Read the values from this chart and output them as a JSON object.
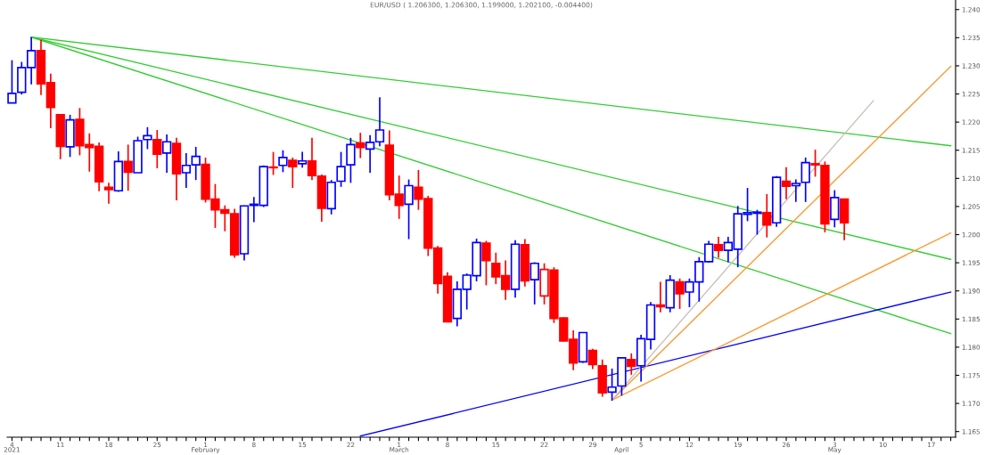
{
  "chart_data": {
    "type": "candlestick",
    "title": "EUR/USD ( 1.206300, 1.206300, 1.199000, 1.202100, -0.004400)",
    "categories": [
      "4\n2021",
      null,
      null,
      null,
      null,
      "11",
      null,
      null,
      null,
      null,
      "18",
      null,
      null,
      null,
      null,
      "25",
      null,
      null,
      null,
      null,
      "1\nFebruary",
      null,
      null,
      null,
      null,
      "8",
      null,
      null,
      null,
      null,
      "15",
      null,
      null,
      null,
      null,
      "22",
      null,
      null,
      null,
      null,
      "1\nMarch",
      null,
      null,
      null,
      null,
      "8",
      null,
      null,
      null,
      null,
      "15",
      null,
      null,
      null,
      null,
      "22",
      null,
      null,
      null,
      null,
      "29",
      null,
      null,
      "\nApril",
      null,
      "5",
      null,
      null,
      null,
      null,
      "12",
      null,
      null,
      null,
      null,
      "19",
      null,
      null,
      null,
      null,
      "26",
      null,
      null,
      null,
      null,
      "3\nMay",
      null,
      null,
      null,
      null,
      "10",
      null,
      null,
      null,
      null,
      "17",
      null,
      null
    ],
    "ohlc": [
      [
        1.2234,
        1.231,
        1.2234,
        1.2251
      ],
      [
        1.2253,
        1.2307,
        1.2249,
        1.2297
      ],
      [
        1.2297,
        1.2351,
        1.2267,
        1.2327
      ],
      [
        1.2327,
        1.2346,
        1.2248,
        1.2268
      ],
      [
        1.227,
        1.2286,
        1.2189,
        1.2226
      ],
      [
        1.2213,
        1.2213,
        1.2134,
        1.2157
      ],
      [
        1.2156,
        1.2213,
        1.2138,
        1.2204
      ],
      [
        1.2205,
        1.2225,
        1.2141,
        1.2158
      ],
      [
        1.216,
        1.218,
        1.2112,
        1.2155
      ],
      [
        1.2157,
        1.2164,
        1.2077,
        1.2094
      ],
      [
        1.2084,
        1.2092,
        1.2055,
        1.208
      ],
      [
        1.2078,
        1.2148,
        1.2076,
        1.213
      ],
      [
        1.213,
        1.216,
        1.2078,
        1.2111
      ],
      [
        1.211,
        1.2174,
        1.211,
        1.2167
      ],
      [
        1.2169,
        1.2191,
        1.2152,
        1.2176
      ],
      [
        1.2169,
        1.2186,
        1.2118,
        1.2143
      ],
      [
        1.2145,
        1.2178,
        1.211,
        1.2165
      ],
      [
        1.2162,
        1.2172,
        1.2061,
        1.2108
      ],
      [
        1.211,
        1.2145,
        1.2083,
        1.2123
      ],
      [
        1.2124,
        1.2156,
        1.2097,
        1.2139
      ],
      [
        1.2125,
        1.2137,
        1.2057,
        1.2063
      ],
      [
        1.2063,
        1.209,
        1.2012,
        1.2044
      ],
      [
        1.2044,
        1.2052,
        1.2006,
        1.2038
      ],
      [
        1.2037,
        1.2046,
        1.1959,
        1.1964
      ],
      [
        1.1966,
        1.2052,
        1.1954,
        1.2051
      ],
      [
        1.2052,
        1.2067,
        1.2022,
        1.2054
      ],
      [
        1.2052,
        1.2123,
        1.2049,
        1.2121
      ],
      [
        1.212,
        1.2147,
        1.2106,
        1.2119
      ],
      [
        1.2123,
        1.215,
        1.2111,
        1.2137
      ],
      [
        1.2132,
        1.2137,
        1.2083,
        1.2121
      ],
      [
        1.2126,
        1.2147,
        1.2119,
        1.2131
      ],
      [
        1.2131,
        1.2172,
        1.2097,
        1.2105
      ],
      [
        1.2104,
        1.2107,
        1.2023,
        1.2047
      ],
      [
        1.2046,
        1.2097,
        1.2036,
        1.2093
      ],
      [
        1.2095,
        1.2147,
        1.2085,
        1.2121
      ],
      [
        1.2124,
        1.2172,
        1.2092,
        1.216
      ],
      [
        1.2163,
        1.2181,
        1.2136,
        1.2155
      ],
      [
        1.2152,
        1.2177,
        1.211,
        1.2164
      ],
      [
        1.2165,
        1.2244,
        1.2157,
        1.2186
      ],
      [
        1.2159,
        1.2185,
        1.2061,
        1.2071
      ],
      [
        1.2072,
        1.2105,
        1.2028,
        1.2052
      ],
      [
        1.2054,
        1.2098,
        1.1992,
        1.2087
      ],
      [
        1.2084,
        1.2115,
        1.2044,
        1.2063
      ],
      [
        1.2064,
        1.2069,
        1.1962,
        1.1976
      ],
      [
        1.1976,
        1.198,
        1.1895,
        1.1913
      ],
      [
        1.1926,
        1.1933,
        1.1845,
        1.1845
      ],
      [
        1.1851,
        1.1917,
        1.1837,
        1.1903
      ],
      [
        1.1903,
        1.1931,
        1.1867,
        1.1928
      ],
      [
        1.1927,
        1.1993,
        1.1917,
        1.1986
      ],
      [
        1.1985,
        1.1989,
        1.191,
        1.1954
      ],
      [
        1.1949,
        1.1968,
        1.1912,
        1.1925
      ],
      [
        1.1927,
        1.1954,
        1.1884,
        1.1903
      ],
      [
        1.1903,
        1.199,
        1.1888,
        1.1983
      ],
      [
        1.1982,
        1.1992,
        1.1908,
        1.1918
      ],
      [
        1.192,
        1.1951,
        1.1876,
        1.1949
      ],
      [
        1.1891,
        1.1949,
        1.1876,
        1.1938
      ],
      [
        1.1937,
        1.1942,
        1.1843,
        1.1851
      ],
      [
        1.1852,
        1.1853,
        1.181,
        1.1811
      ],
      [
        1.1814,
        1.183,
        1.1759,
        1.1772
      ],
      [
        1.1774,
        1.1826,
        1.1772,
        1.1826
      ],
      [
        1.1794,
        1.1797,
        1.1761,
        1.1769
      ],
      [
        1.1767,
        1.1778,
        1.1712,
        1.1719
      ],
      [
        1.172,
        1.1762,
        1.1705,
        1.1729
      ],
      [
        1.1731,
        1.1781,
        1.1714,
        1.1781
      ],
      [
        1.1778,
        1.1789,
        1.1751,
        1.1766
      ],
      [
        1.1767,
        1.1822,
        1.1739,
        1.1815
      ],
      [
        1.1814,
        1.188,
        1.1796,
        1.1875
      ],
      [
        1.1875,
        1.1916,
        1.1862,
        1.1872
      ],
      [
        1.187,
        1.1928,
        1.1862,
        1.1919
      ],
      [
        1.1916,
        1.1922,
        1.1868,
        1.1895
      ],
      [
        1.1898,
        1.1922,
        1.1871,
        1.1916
      ],
      [
        1.1916,
        1.196,
        1.1881,
        1.1952
      ],
      [
        1.1952,
        1.1989,
        1.195,
        1.1983
      ],
      [
        1.1982,
        1.1996,
        1.1959,
        1.1972
      ],
      [
        1.1972,
        1.1996,
        1.1951,
        1.1986
      ],
      [
        1.1974,
        1.2051,
        1.1942,
        1.2037
      ],
      [
        1.2036,
        1.2083,
        1.2024,
        1.2039
      ],
      [
        1.2038,
        1.2044,
        1.2,
        1.204
      ],
      [
        1.2039,
        1.2072,
        1.1995,
        1.2017
      ],
      [
        1.2021,
        1.2104,
        1.2014,
        1.2102
      ],
      [
        1.2095,
        1.212,
        1.2063,
        1.2086
      ],
      [
        1.2087,
        1.2098,
        1.2058,
        1.2091
      ],
      [
        1.2093,
        1.2137,
        1.2058,
        1.2128
      ],
      [
        1.2126,
        1.2151,
        1.2103,
        1.2124
      ],
      [
        1.2123,
        1.213,
        1.2004,
        1.2019
      ],
      [
        1.2027,
        1.2079,
        1.2013,
        1.2066
      ],
      [
        1.2063,
        1.2063,
        1.199,
        1.2021
      ],
      null,
      null,
      null,
      null,
      null,
      null,
      null,
      null,
      null,
      null,
      null
    ],
    "colors": [
      "#0000ff",
      "#0000ff",
      "#0000ff",
      "#ff0000",
      "#ff0000",
      "#ff0000",
      "#0000ff",
      "#ff0000",
      "#ff0000",
      "#ff0000",
      "#ff0000",
      "#0000ff",
      "#ff0000",
      "#0000ff",
      "#0000ff",
      "#ff0000",
      "#0000ff",
      "#ff0000",
      "#0000ff",
      "#0000ff",
      "#ff0000",
      "#ff0000",
      "#ff0000",
      "#ff0000",
      "#0000ff",
      "#0000ff",
      "#0000ff",
      "#ff0000",
      "#0000ff",
      "#ff0000",
      "#0000ff",
      "#ff0000",
      "#ff0000",
      "#0000ff",
      "#0000ff",
      "#0000ff",
      "#ff0000",
      "#0000ff",
      "#0000ff",
      "#ff0000",
      "#ff0000",
      "#0000ff",
      "#ff0000",
      "#ff0000",
      "#ff0000",
      "#ff0000",
      "#0000ff",
      "#0000ff",
      "#0000ff",
      "#ff0000",
      "#ff0000",
      "#ff0000",
      "#0000ff",
      "#ff0000",
      "#0000ff",
      "#ff0000",
      "#ff0000",
      "#ff0000",
      "#ff0000",
      "#0000ff",
      "#ff0000",
      "#ff0000",
      "#0000ff",
      "#0000ff",
      "#ff0000",
      "#0000ff",
      "#0000ff",
      "#ff0000",
      "#0000ff",
      "#ff0000",
      "#0000ff",
      "#0000ff",
      "#0000ff",
      "#ff0000",
      "#0000ff",
      "#0000ff",
      "#0000ff",
      "#0000ff",
      "#ff0000",
      "#0000ff",
      "#ff0000",
      "#0000ff",
      "#0000ff",
      "#ff0000",
      "#ff0000",
      "#0000ff",
      "#ff0000",
      null,
      null,
      null,
      null,
      null,
      null,
      null,
      null,
      null,
      null,
      null
    ],
    "series": [
      {
        "type": "line",
        "color": "#33cc33",
        "values": [
          null,
          null,
          1.2351,
          null,
          null,
          null,
          null,
          null,
          null,
          null,
          null,
          null,
          null,
          null,
          null,
          null,
          null,
          null,
          null,
          null,
          null,
          null,
          null,
          null,
          null,
          null,
          null,
          null,
          null,
          null,
          null,
          null,
          null,
          null,
          null,
          null,
          null,
          null,
          null,
          null,
          null,
          null,
          null,
          null,
          null,
          null,
          null,
          null,
          null,
          null,
          null,
          null,
          null,
          null,
          null,
          null,
          null,
          null,
          null,
          null,
          null,
          null,
          null,
          null,
          null,
          null,
          null,
          null,
          null,
          null,
          null,
          null,
          null,
          null,
          null,
          null,
          null,
          null,
          null,
          null,
          null,
          null,
          null,
          null,
          null,
          null,
          null,
          null,
          null,
          null,
          null,
          null,
          null,
          null,
          null,
          null,
          null,
          1.2158
        ]
      },
      {
        "type": "line",
        "color": "#33cc33",
        "values": [
          null,
          null,
          1.2351,
          null,
          null,
          null,
          null,
          null,
          null,
          null,
          null,
          null,
          null,
          null,
          null,
          null,
          null,
          null,
          null,
          null,
          null,
          null,
          null,
          null,
          null,
          null,
          null,
          null,
          null,
          null,
          null,
          null,
          null,
          null,
          null,
          null,
          null,
          null,
          null,
          null,
          null,
          null,
          null,
          null,
          null,
          null,
          null,
          null,
          null,
          null,
          null,
          null,
          null,
          null,
          null,
          null,
          null,
          null,
          null,
          null,
          null,
          null,
          null,
          null,
          null,
          null,
          null,
          null,
          null,
          null,
          null,
          null,
          null,
          null,
          null,
          null,
          null,
          null,
          null,
          null,
          null,
          null,
          null,
          null,
          null,
          null,
          null,
          null,
          null,
          null,
          null,
          null,
          null,
          null,
          null,
          null,
          null,
          1.1956
        ]
      },
      {
        "type": "line",
        "color": "#33cc33",
        "values": [
          null,
          null,
          1.2351,
          null,
          null,
          null,
          null,
          null,
          null,
          null,
          null,
          null,
          null,
          null,
          null,
          null,
          null,
          null,
          null,
          null,
          null,
          null,
          null,
          null,
          null,
          null,
          null,
          null,
          null,
          null,
          null,
          null,
          null,
          null,
          null,
          null,
          null,
          null,
          null,
          null,
          null,
          null,
          null,
          null,
          null,
          null,
          null,
          null,
          null,
          null,
          null,
          null,
          null,
          null,
          null,
          null,
          null,
          null,
          null,
          null,
          null,
          null,
          null,
          null,
          null,
          null,
          null,
          null,
          null,
          null,
          null,
          null,
          null,
          null,
          null,
          null,
          null,
          null,
          null,
          null,
          null,
          null,
          null,
          null,
          null,
          null,
          null,
          null,
          null,
          null,
          null,
          null,
          null,
          null,
          null,
          null,
          null,
          1.1824
        ]
      },
      {
        "type": "line",
        "color": "#0000ff",
        "values": [
          null,
          null,
          null,
          null,
          null,
          null,
          null,
          null,
          null,
          null,
          null,
          null,
          null,
          null,
          null,
          null,
          null,
          null,
          null,
          null,
          null,
          null,
          null,
          null,
          null,
          null,
          null,
          null,
          null,
          null,
          null,
          null,
          null,
          null,
          null,
          null,
          1.1642,
          null,
          null,
          null,
          null,
          null,
          null,
          null,
          null,
          null,
          null,
          null,
          null,
          null,
          null,
          null,
          null,
          null,
          null,
          null,
          null,
          null,
          null,
          null,
          null,
          null,
          null,
          null,
          null,
          null,
          null,
          null,
          null,
          null,
          null,
          null,
          null,
          null,
          null,
          null,
          null,
          null,
          null,
          null,
          null,
          null,
          null,
          null,
          null,
          null,
          null,
          null,
          null,
          null,
          null,
          null,
          null,
          null,
          null,
          null,
          null,
          1.1898
        ]
      },
      {
        "type": "line",
        "color": "#ff9933",
        "values": [
          null,
          null,
          null,
          null,
          null,
          null,
          null,
          null,
          null,
          null,
          null,
          null,
          null,
          null,
          null,
          null,
          null,
          null,
          null,
          null,
          null,
          null,
          null,
          null,
          null,
          null,
          null,
          null,
          null,
          null,
          null,
          null,
          null,
          null,
          null,
          null,
          null,
          null,
          null,
          null,
          null,
          null,
          null,
          null,
          null,
          null,
          null,
          null,
          null,
          null,
          null,
          null,
          null,
          null,
          null,
          null,
          null,
          null,
          null,
          null,
          null,
          null,
          1.1706,
          null,
          null,
          null,
          null,
          null,
          null,
          null,
          null,
          null,
          null,
          null,
          null,
          null,
          null,
          null,
          null,
          null,
          null,
          null,
          null,
          null,
          null,
          null,
          null,
          null,
          null,
          null,
          null,
          null,
          null,
          null,
          null,
          null,
          null,
          1.2299
        ]
      },
      {
        "type": "line",
        "color": "#ff9933",
        "values": [
          null,
          null,
          null,
          null,
          null,
          null,
          null,
          null,
          null,
          null,
          null,
          null,
          null,
          null,
          null,
          null,
          null,
          null,
          null,
          null,
          null,
          null,
          null,
          null,
          null,
          null,
          null,
          null,
          null,
          null,
          null,
          null,
          null,
          null,
          null,
          null,
          null,
          null,
          null,
          null,
          null,
          null,
          null,
          null,
          null,
          null,
          null,
          null,
          null,
          null,
          null,
          null,
          null,
          null,
          null,
          null,
          null,
          null,
          null,
          null,
          null,
          null,
          1.1706,
          null,
          null,
          null,
          null,
          null,
          null,
          null,
          null,
          null,
          null,
          null,
          null,
          null,
          null,
          null,
          null,
          null,
          null,
          null,
          null,
          null,
          null,
          null,
          null,
          null,
          null,
          null,
          null,
          null,
          null,
          null,
          null,
          null,
          null,
          1.2003
        ]
      },
      {
        "type": "line",
        "color": "#c8c0b8",
        "values": [
          null,
          null,
          null,
          null,
          null,
          null,
          null,
          null,
          null,
          null,
          null,
          null,
          null,
          null,
          null,
          null,
          null,
          null,
          null,
          null,
          null,
          null,
          null,
          null,
          null,
          null,
          null,
          null,
          null,
          null,
          null,
          null,
          null,
          null,
          null,
          null,
          null,
          null,
          null,
          null,
          null,
          null,
          null,
          null,
          null,
          null,
          null,
          null,
          null,
          null,
          null,
          null,
          null,
          null,
          null,
          null,
          null,
          null,
          null,
          null,
          null,
          null,
          1.1706,
          null,
          null,
          null,
          null,
          null,
          null,
          null,
          null,
          null,
          null,
          null,
          null,
          null,
          null,
          null,
          null,
          null,
          null,
          null,
          null,
          null,
          null,
          null,
          null,
          null,
          null,
          1.2238,
          null,
          null,
          null,
          null,
          null,
          null,
          null,
          null
        ]
      }
    ],
    "ylim": [
      1.164,
      1.2417
    ],
    "yticks": [
      1.165,
      {
        "value": 1.17,
        "label": "1.170"
      },
      1.175,
      {
        "value": 1.18,
        "label": "1.180"
      },
      1.185,
      {
        "value": 1.19,
        "label": "1.190"
      },
      1.195,
      {
        "value": 1.2,
        "label": "1.200"
      },
      1.205,
      {
        "value": 1.21,
        "label": "1.210"
      },
      1.215,
      {
        "value": 1.22,
        "label": "1.220"
      },
      1.225,
      {
        "value": 1.23,
        "label": "1.230"
      },
      1.235,
      {
        "value": 1.24,
        "label": "1.240"
      }
    ],
    "grid": false,
    "legend": false
  }
}
